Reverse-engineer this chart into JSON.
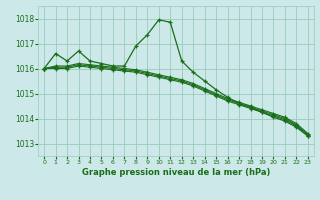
{
  "title": "Graphe pression niveau de la mer (hPa)",
  "bg_color": "#cce8e8",
  "grid_color": "#99ccbb",
  "line_color": "#1a6e1a",
  "xlim": [
    -0.5,
    23.5
  ],
  "ylim": [
    1012.5,
    1018.5
  ],
  "yticks": [
    1013,
    1014,
    1015,
    1016,
    1017,
    1018
  ],
  "xticks": [
    0,
    1,
    2,
    3,
    4,
    5,
    6,
    7,
    8,
    9,
    10,
    11,
    12,
    13,
    14,
    15,
    16,
    17,
    18,
    19,
    20,
    21,
    22,
    23
  ],
  "series": [
    {
      "x": [
        0,
        1,
        2,
        3,
        4,
        5,
        6,
        7,
        8,
        9,
        10,
        11,
        12,
        13,
        14,
        15,
        16,
        17,
        18,
        19,
        20,
        21,
        22,
        23
      ],
      "y": [
        1016.0,
        1016.0,
        1016.0,
        1016.1,
        1016.05,
        1016.0,
        1015.95,
        1015.9,
        1015.85,
        1015.75,
        1015.65,
        1015.55,
        1015.45,
        1015.3,
        1015.1,
        1014.9,
        1014.7,
        1014.55,
        1014.4,
        1014.25,
        1014.1,
        1013.95,
        1013.7,
        1013.3
      ]
    },
    {
      "x": [
        0,
        1,
        2,
        3,
        4,
        5,
        6,
        7,
        8,
        9,
        10,
        11,
        12,
        13,
        14,
        15,
        16,
        17,
        18,
        19,
        20,
        21,
        22,
        23
      ],
      "y": [
        1016.0,
        1016.05,
        1016.05,
        1016.15,
        1016.1,
        1016.05,
        1016.0,
        1015.95,
        1015.9,
        1015.8,
        1015.7,
        1015.6,
        1015.5,
        1015.35,
        1015.15,
        1014.95,
        1014.75,
        1014.6,
        1014.45,
        1014.3,
        1014.15,
        1014.0,
        1013.75,
        1013.35
      ]
    },
    {
      "x": [
        0,
        1,
        2,
        3,
        4,
        5,
        6,
        7,
        8,
        9,
        10,
        11,
        12,
        13,
        14,
        15,
        16,
        17,
        18,
        19,
        20,
        21,
        22,
        23
      ],
      "y": [
        1016.0,
        1016.1,
        1016.1,
        1016.2,
        1016.15,
        1016.1,
        1016.05,
        1016.0,
        1015.95,
        1015.85,
        1015.75,
        1015.65,
        1015.55,
        1015.4,
        1015.2,
        1015.0,
        1014.8,
        1014.65,
        1014.5,
        1014.35,
        1014.2,
        1014.05,
        1013.8,
        1013.4
      ]
    }
  ],
  "peak_series": {
    "x": [
      0,
      1,
      2,
      3,
      4,
      5,
      6,
      7,
      8,
      9,
      10,
      11,
      12,
      13,
      14,
      15,
      16,
      17,
      18,
      19,
      20,
      21,
      22,
      23
    ],
    "y": [
      1016.0,
      1016.6,
      1016.3,
      1016.7,
      1016.3,
      1016.2,
      1016.1,
      1016.1,
      1016.9,
      1017.35,
      1017.95,
      1017.85,
      1016.3,
      1015.85,
      1015.5,
      1015.15,
      1014.85,
      1014.6,
      1014.45,
      1014.25,
      1014.05,
      1013.9,
      1013.65,
      1013.3
    ]
  }
}
